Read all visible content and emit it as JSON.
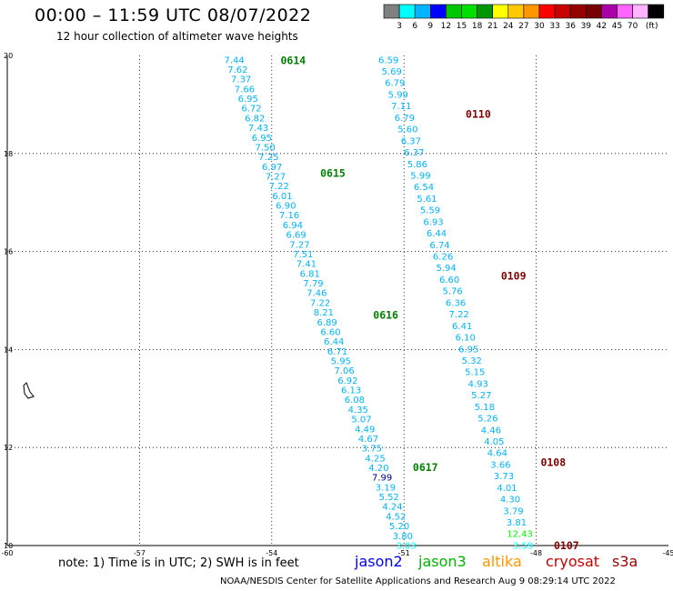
{
  "header": {
    "title": "00:00 – 11:59 UTC 08/07/2022",
    "subtitle": "12 hour collection of altimeter wave heights"
  },
  "legend": {
    "colors": [
      "#808080",
      "#00ffff",
      "#00b4ff",
      "#0000ff",
      "#00c800",
      "#00e000",
      "#009600",
      "#ffff00",
      "#ffc800",
      "#ff9600",
      "#ff0000",
      "#c80000",
      "#960000",
      "#780000",
      "#aa00aa",
      "#ff64ff",
      "#ffb4ff",
      "#000000"
    ],
    "labels": [
      "3",
      "6",
      "9",
      "12",
      "15",
      "18",
      "21",
      "24",
      "27",
      "30",
      "33",
      "36",
      "39",
      "42",
      "45",
      "70"
    ],
    "unit": "(ft)"
  },
  "axes": {
    "lon_ticks": [
      "-60",
      "-57",
      "-54",
      "-51",
      "-48",
      "-45"
    ],
    "lat_ticks": [
      "20",
      "18",
      "16",
      "14",
      "12",
      "10"
    ]
  },
  "pass_labels": [
    {
      "text": "0614",
      "color": "#008000",
      "lon": -53.8,
      "lat": 19.9
    },
    {
      "text": "0615",
      "color": "#008000",
      "lon": -52.9,
      "lat": 17.6
    },
    {
      "text": "0616",
      "color": "#008000",
      "lon": -51.7,
      "lat": 14.7
    },
    {
      "text": "0617",
      "color": "#008000",
      "lon": -50.8,
      "lat": 11.6
    },
    {
      "text": "0110",
      "color": "#800000",
      "lon": -49.6,
      "lat": 18.8
    },
    {
      "text": "0109",
      "color": "#800000",
      "lon": -48.8,
      "lat": 15.5
    },
    {
      "text": "0108",
      "color": "#800000",
      "lon": -47.9,
      "lat": 11.7
    },
    {
      "text": "0107",
      "color": "#800000",
      "lon": -47.6,
      "lat": 10.0
    }
  ],
  "tracks": [
    {
      "name": "green",
      "start": [
        -54.85,
        19.92
      ],
      "end": [
        -50.95,
        10.01
      ],
      "values": [
        "7.44",
        "7.62",
        "7.37",
        "7.66",
        "6.95",
        "6.72",
        "6.82",
        "7.43",
        "6.95",
        "7.50",
        "7.25",
        "6.97",
        "7.27",
        "7.22",
        "6.01",
        "6.90",
        "7.16",
        "6.94",
        "6.69",
        "7.27",
        "7.51",
        "7.41",
        "6.81",
        "7.79",
        "7.46",
        "7.22",
        "8.21",
        "6.89",
        "6.60",
        "6.44",
        "6.71",
        "5.95",
        "7.06",
        "6.92",
        "6.13",
        "6.08",
        "4.35",
        "5.07",
        "4.49",
        "4.67",
        "3.75",
        "4.25",
        "4.20",
        "7.99",
        "3.19",
        "5.52",
        "4.24",
        "4.52",
        "5.20",
        "3.80",
        "3.03"
      ],
      "colors": {
        "43": "#000080",
        "49": "#00b4ff",
        "50": "#00ffff"
      }
    },
    {
      "name": "red",
      "start": [
        -51.35,
        19.92
      ],
      "end": [
        -48.3,
        10.01
      ],
      "values": [
        "6.59",
        "5.69",
        "6.79",
        "5.99",
        "7.11",
        "6.79",
        "5.60",
        "6.37",
        "6.37",
        "5.86",
        "5.99",
        "6.54",
        "5.61",
        "5.59",
        "6.93",
        "6.44",
        "6.74",
        "6.26",
        "5.94",
        "6.60",
        "5.76",
        "6.36",
        "7.22",
        "6.41",
        "6.10",
        "6.95",
        "5.32",
        "5.15",
        "4.93",
        "5.27",
        "5.18",
        "5.26",
        "4.46",
        "4.05",
        "4.64",
        "3.66",
        "3.73",
        "4.01",
        "4.30",
        "3.79",
        "3.81",
        "12.43",
        "3.59"
      ],
      "colors": {
        "41": "#00ff00",
        "42": "#00ffff"
      }
    }
  ],
  "footer": {
    "note": "note:  1) Time is in UTC;  2) SWH is in feet",
    "satellites": [
      {
        "name": "jason2",
        "color": "#0000ff"
      },
      {
        "name": "jason3",
        "color": "#00b400"
      },
      {
        "name": "altika",
        "color": "#ff9600"
      },
      {
        "name": "cryosat",
        "color": "#c80000"
      },
      {
        "name": "s3a",
        "color": "#960000"
      }
    ],
    "credit": "NOAA/NESDIS Center for Satellite Applications and Research    Aug  9 08:29:14 UTC 2022"
  }
}
